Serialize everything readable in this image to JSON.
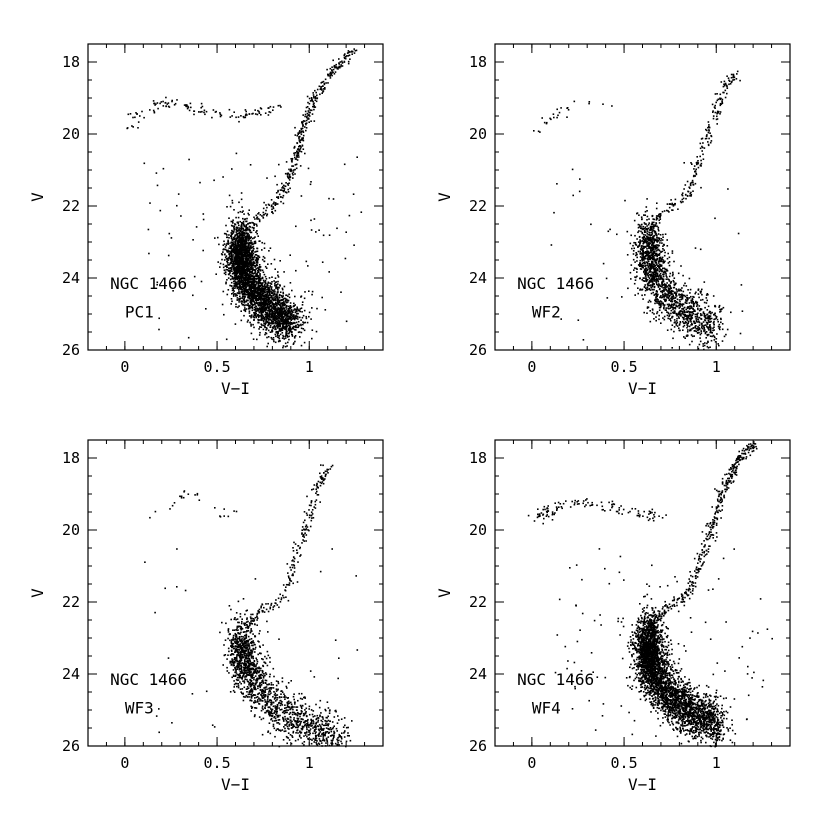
{
  "chart_data": [
    {
      "type": "scatter",
      "panel_id": "pc1",
      "title": "",
      "xlabel": "V−I",
      "ylabel": "V",
      "xlim": [
        -0.2,
        1.4
      ],
      "ylim": [
        26,
        17.5
      ],
      "y_inverted": true,
      "xticks": [
        0,
        0.5,
        1
      ],
      "xtick_labels": [
        "0",
        "0.5",
        "1"
      ],
      "yticks": [
        18,
        20,
        22,
        24,
        26
      ],
      "ytick_labels": [
        "18",
        "20",
        "22",
        "24",
        "26"
      ],
      "annotations": [
        "NGC 1466",
        "PC1"
      ],
      "grid": false,
      "point_density": "high",
      "features": {
        "main_sequence_turnoff": {
          "x": 0.62,
          "y": 23.0
        },
        "red_giant_branch": [
          [
            0.62,
            23.0
          ],
          [
            0.7,
            22.4
          ],
          [
            0.82,
            21.9
          ],
          [
            0.9,
            21.0
          ],
          [
            0.95,
            20.0
          ],
          [
            1.02,
            19.0
          ],
          [
            1.12,
            18.2
          ],
          [
            1.25,
            17.6
          ]
        ],
        "horizontal_branch": [
          [
            0.0,
            19.8
          ],
          [
            0.1,
            19.3
          ],
          [
            0.25,
            19.1
          ],
          [
            0.4,
            19.3
          ],
          [
            0.55,
            19.5
          ],
          [
            0.7,
            19.4
          ],
          [
            0.85,
            19.2
          ]
        ],
        "main_sequence": [
          [
            0.62,
            23.0
          ],
          [
            0.64,
            23.8
          ],
          [
            0.7,
            24.4
          ],
          [
            0.8,
            24.9
          ],
          [
            0.9,
            25.2
          ]
        ]
      }
    },
    {
      "type": "scatter",
      "panel_id": "wf2",
      "title": "",
      "xlabel": "V−I",
      "ylabel": "V",
      "xlim": [
        -0.2,
        1.4
      ],
      "ylim": [
        26,
        17.5
      ],
      "y_inverted": true,
      "xticks": [
        0,
        0.5,
        1
      ],
      "xtick_labels": [
        "0",
        "0.5",
        "1"
      ],
      "yticks": [
        18,
        20,
        22,
        24,
        26
      ],
      "ytick_labels": [
        "18",
        "20",
        "22",
        "24",
        "26"
      ],
      "annotations": [
        "NGC 1466",
        "WF2"
      ],
      "grid": false,
      "point_density": "medium",
      "features": {
        "main_sequence_turnoff": {
          "x": 0.63,
          "y": 22.8
        },
        "red_giant_branch": [
          [
            0.63,
            22.6
          ],
          [
            0.72,
            22.1
          ],
          [
            0.85,
            21.6
          ],
          [
            0.92,
            20.5
          ],
          [
            0.98,
            19.5
          ],
          [
            1.05,
            18.6
          ],
          [
            1.1,
            18.3
          ]
        ],
        "horizontal_branch": [
          [
            0.02,
            19.9
          ],
          [
            0.1,
            19.5
          ],
          [
            0.2,
            19.3
          ],
          [
            0.32,
            19.1
          ],
          [
            0.45,
            19.3
          ]
        ],
        "main_sequence": [
          [
            0.63,
            22.8
          ],
          [
            0.64,
            23.8
          ],
          [
            0.72,
            24.5
          ],
          [
            0.85,
            25.0
          ],
          [
            1.0,
            25.4
          ]
        ]
      }
    },
    {
      "type": "scatter",
      "panel_id": "wf3",
      "title": "",
      "xlabel": "V−I",
      "ylabel": "V",
      "xlim": [
        -0.2,
        1.4
      ],
      "ylim": [
        26,
        17.5
      ],
      "y_inverted": true,
      "xticks": [
        0,
        0.5,
        1
      ],
      "xtick_labels": [
        "0",
        "0.5",
        "1"
      ],
      "yticks": [
        18,
        20,
        22,
        24,
        26
      ],
      "ytick_labels": [
        "18",
        "20",
        "22",
        "24",
        "26"
      ],
      "annotations": [
        "NGC 1466",
        "WF3"
      ],
      "grid": false,
      "point_density": "medium",
      "features": {
        "main_sequence_turnoff": {
          "x": 0.63,
          "y": 23.0
        },
        "red_giant_branch": [
          [
            0.63,
            22.8
          ],
          [
            0.72,
            22.3
          ],
          [
            0.85,
            21.9
          ],
          [
            0.92,
            20.8
          ],
          [
            0.98,
            19.8
          ],
          [
            1.04,
            18.8
          ],
          [
            1.1,
            18.2
          ]
        ],
        "horizontal_branch": [
          [
            0.08,
            19.7
          ],
          [
            0.25,
            19.2
          ],
          [
            0.35,
            18.9
          ],
          [
            0.5,
            19.5
          ],
          [
            0.65,
            19.6
          ]
        ],
        "main_sequence": [
          [
            0.63,
            23.0
          ],
          [
            0.65,
            23.8
          ],
          [
            0.72,
            24.4
          ],
          [
            0.85,
            25.0
          ],
          [
            1.0,
            25.4
          ],
          [
            1.15,
            25.8
          ]
        ]
      }
    },
    {
      "type": "scatter",
      "panel_id": "wf4",
      "title": "",
      "xlabel": "V−I",
      "ylabel": "V",
      "xlim": [
        -0.2,
        1.4
      ],
      "ylim": [
        26,
        17.5
      ],
      "y_inverted": true,
      "xticks": [
        0,
        0.5,
        1
      ],
      "xtick_labels": [
        "0",
        "0.5",
        "1"
      ],
      "yticks": [
        18,
        20,
        22,
        24,
        26
      ],
      "ytick_labels": [
        "18",
        "20",
        "22",
        "24",
        "26"
      ],
      "annotations": [
        "NGC 1466",
        "WF4"
      ],
      "grid": false,
      "point_density": "high",
      "features": {
        "main_sequence_turnoff": {
          "x": 0.63,
          "y": 22.9
        },
        "red_giant_branch": [
          [
            0.63,
            22.7
          ],
          [
            0.72,
            22.2
          ],
          [
            0.85,
            21.7
          ],
          [
            0.93,
            20.6
          ],
          [
            0.99,
            19.6
          ],
          [
            1.05,
            18.7
          ],
          [
            1.12,
            18.0
          ],
          [
            1.2,
            17.6
          ]
        ],
        "horizontal_branch": [
          [
            0.0,
            19.7
          ],
          [
            0.1,
            19.4
          ],
          [
            0.25,
            19.2
          ],
          [
            0.4,
            19.3
          ],
          [
            0.55,
            19.5
          ],
          [
            0.7,
            19.6
          ]
        ],
        "main_sequence": [
          [
            0.63,
            22.9
          ],
          [
            0.64,
            23.8
          ],
          [
            0.72,
            24.5
          ],
          [
            0.85,
            25.0
          ],
          [
            1.0,
            25.4
          ]
        ]
      }
    }
  ]
}
